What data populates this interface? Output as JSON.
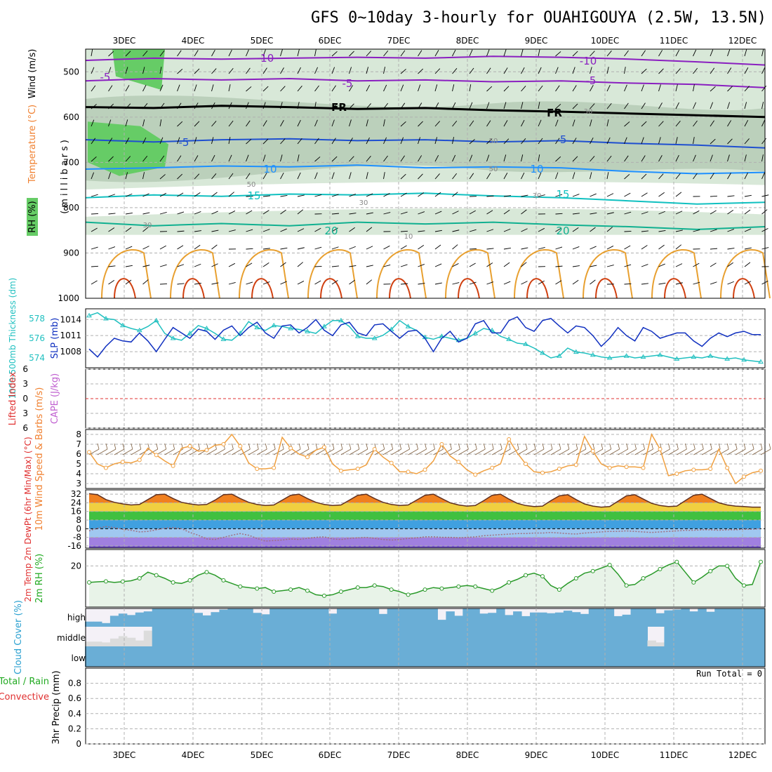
{
  "header": {
    "title": "GFS 0~10day 3-hourly for OUAHIGOUYA (2.5W, 13.5N)"
  },
  "colors": {
    "frame": "#000000",
    "grid": "#b0b0b0",
    "rh_fill": "#d8e8d8",
    "rh_fill2": "#a8c0a8",
    "rh_green": "#66cc66",
    "temp_purple": "#8a1fc0",
    "temp_blue": "#1f4fd0",
    "temp_lightblue": "#1e90ff",
    "temp_cyan": "#10c0c0",
    "temp_teal": "#10b090",
    "temp_orange": "#e8a030",
    "temp_red": "#d04010",
    "thickness": "#20c0c0",
    "slp": "#1030c0",
    "wind_speed": "#f0a040",
    "barb": "#806040",
    "temp2m_max": "#e05010",
    "dewpoint": "#a07080",
    "rh2m": "#2a9a2a",
    "rh2m_fill": "#e8f3e8",
    "cloud_blue": "#6aaed6",
    "cloud_bg": "#f4f1f7",
    "cloud_grey": "#dcdcdc",
    "label_red": "#e03030",
    "label_orange": "#f08030",
    "label_green": "#22aa22",
    "label_cyan": "#2aa0d0",
    "label_purple": "#c060d0"
  },
  "chart_data": [
    {
      "type": "contour",
      "panel": "upper_air",
      "ylabel": "(millibars)",
      "side_labels": [
        "RH (%)",
        "Temperature (°C)",
        "Wind (m/s)"
      ],
      "yticks": [
        "500",
        "600",
        "700",
        "800",
        "900",
        "1000"
      ],
      "ylim": [
        1000,
        450
      ],
      "x_dates": [
        "3DEC",
        "4DEC",
        "5DEC",
        "6DEC",
        "7DEC",
        "8DEC",
        "9DEC",
        "10DEC",
        "11DEC",
        "12DEC"
      ],
      "contour_labels": [
        "-10",
        "-10",
        "-5",
        "-5",
        "-5",
        "FR",
        "FR",
        "-5",
        "-5",
        "10",
        "10",
        "15",
        "15",
        "20",
        "20",
        "50",
        "50",
        "50",
        "30",
        "30",
        "30",
        "30",
        "10"
      ],
      "isotherms": [
        {
          "name": "-10",
          "level": [
            475,
            470,
            472,
            470,
            468,
            470,
            466,
            468,
            472,
            478,
            485
          ]
        },
        {
          "name": "-5",
          "level": [
            520,
            515,
            518,
            515,
            520,
            518,
            522,
            520,
            525,
            528,
            535
          ]
        },
        {
          "name": "FR",
          "level": [
            578,
            580,
            575,
            578,
            582,
            580,
            585,
            588,
            592,
            596,
            600
          ]
        },
        {
          "name": "5",
          "level": [
            650,
            655,
            650,
            648,
            652,
            650,
            655,
            652,
            658,
            662,
            668
          ]
        },
        {
          "name": "10",
          "level": [
            715,
            712,
            708,
            710,
            706,
            712,
            710,
            712,
            720,
            725,
            722
          ]
        },
        {
          "name": "15",
          "level": [
            778,
            772,
            775,
            770,
            772,
            768,
            774,
            778,
            785,
            792,
            788
          ]
        },
        {
          "name": "20",
          "level": [
            832,
            840,
            835,
            840,
            832,
            836,
            832,
            838,
            842,
            848,
            842
          ]
        }
      ]
    },
    {
      "type": "line",
      "panel": "thickness_slp",
      "y1label": "1000-500mb Thickness (dm)",
      "y2label": "SLP (mb)",
      "y1ticks": [
        "578",
        "576",
        "574"
      ],
      "y2ticks": [
        "1014",
        "1011",
        "1008"
      ],
      "series": [
        {
          "name": "1000-500mb Thickness (dm)",
          "ylim": [
            573,
            579
          ],
          "values": [
            578.3,
            578.6,
            578.0,
            577.9,
            577.3,
            577.0,
            576.8,
            577.2,
            577.8,
            576.5,
            576.0,
            575.8,
            576.5,
            577.3,
            577.0,
            576.5,
            575.9,
            575.8,
            576.5,
            577.7,
            577.1,
            576.8,
            577.3,
            577.2,
            577.0,
            576.9,
            576.7,
            576.5,
            577.2,
            577.8,
            577.8,
            577.2,
            576.2,
            576.0,
            576.0,
            576.3,
            576.9,
            577.8,
            577.2,
            576.8,
            576.1,
            575.9,
            576.2,
            576.0,
            575.8,
            576.0,
            576.5,
            577.0,
            576.8,
            576.2,
            575.9,
            575.5,
            575.4,
            575.0,
            574.5,
            574.0,
            574.2,
            575.0,
            574.6,
            574.5,
            574.3,
            574.1,
            574.0,
            574.1,
            574.2,
            574.0,
            574.1,
            574.2,
            574.3,
            574.1,
            573.9,
            574.0,
            574.1,
            574.0,
            574.2,
            574.0,
            573.9,
            574.0,
            573.8,
            573.7,
            573.6
          ]
        },
        {
          "name": "SLP (mb)",
          "ylim": [
            1005,
            1016
          ],
          "values": [
            1008.5,
            1007.0,
            1009.0,
            1010.5,
            1010.0,
            1009.8,
            1011.5,
            1010.0,
            1008.0,
            1010.3,
            1012.5,
            1011.5,
            1010.5,
            1012.2,
            1011.8,
            1010.3,
            1012.0,
            1012.8,
            1011.0,
            1012.5,
            1013.5,
            1011.5,
            1010.5,
            1012.8,
            1013.0,
            1011.5,
            1012.5,
            1014.0,
            1012.0,
            1011.0,
            1013.0,
            1013.5,
            1011.5,
            1011.0,
            1013.0,
            1013.2,
            1011.8,
            1010.5,
            1011.8,
            1012.0,
            1010.5,
            1008.0,
            1010.5,
            1011.8,
            1009.8,
            1010.5,
            1013.2,
            1013.8,
            1011.5,
            1011.5,
            1013.8,
            1014.5,
            1012.5,
            1011.8,
            1013.8,
            1014.2,
            1012.8,
            1011.5,
            1012.8,
            1012.5,
            1011.0,
            1009.0,
            1010.5,
            1012.5,
            1011.0,
            1010.0,
            1012.5,
            1011.8,
            1010.5,
            1011.0,
            1011.5,
            1011.5,
            1010.0,
            1009.0,
            1010.5,
            1011.5,
            1010.8,
            1011.5,
            1011.8,
            1011.2,
            1011.2
          ]
        }
      ]
    },
    {
      "type": "line",
      "panel": "lifted_index_cape",
      "y1label": "Lifted Index",
      "y2label": "CAPE (J/kg)",
      "yticks": [
        "6",
        "3",
        "0",
        "3",
        "6"
      ],
      "ylim": [
        -6,
        6
      ],
      "series": []
    },
    {
      "type": "line",
      "panel": "wind10m",
      "ylabel": "10m Wind Speed & Barbs (m/s)",
      "yticks": [
        "8",
        "7",
        "6",
        "5",
        "4",
        "3"
      ],
      "ylim": [
        2.5,
        8.5
      ],
      "series": [
        {
          "name": "10m Wind Speed",
          "values": [
            6.2,
            5.0,
            4.6,
            5.0,
            5.2,
            5.1,
            5.4,
            6.6,
            5.9,
            5.3,
            4.8,
            6.6,
            6.8,
            6.3,
            6.4,
            6.9,
            7.0,
            8.0,
            6.8,
            5.1,
            4.5,
            4.5,
            4.6,
            7.7,
            6.6,
            6.0,
            5.7,
            6.4,
            6.7,
            5.0,
            4.3,
            4.4,
            4.5,
            4.9,
            6.5,
            5.7,
            5.1,
            4.2,
            4.2,
            4.0,
            4.4,
            5.3,
            7.0,
            5.8,
            5.2,
            4.4,
            3.9,
            4.3,
            4.6,
            5.0,
            7.5,
            6.1,
            5.0,
            4.2,
            4.1,
            4.2,
            4.5,
            4.8,
            4.9,
            7.8,
            6.3,
            5.0,
            4.6,
            4.8,
            4.7,
            4.7,
            4.6,
            8.0,
            6.5,
            3.8,
            4.0,
            4.3,
            4.4,
            4.4,
            4.5,
            6.5,
            4.6,
            3.0,
            3.7,
            4.1,
            4.3
          ]
        }
      ]
    },
    {
      "type": "area",
      "panel": "temp2m",
      "ylabel": "2m Temp 2m DewPt (6hr Min/Max) (°C)",
      "yticks": [
        "32",
        "24",
        "16",
        "8",
        "0",
        "-8",
        "-16"
      ],
      "ylim": [
        -18,
        36
      ],
      "series": [
        {
          "name": "2m Temp",
          "values": [
            32.5,
            31.5,
            27.0,
            24.5,
            23.0,
            22.0,
            22.5,
            27.0,
            31.5,
            32.0,
            28.0,
            24.5,
            23.0,
            22.0,
            22.5,
            26.5,
            31.5,
            32.0,
            28.0,
            24.5,
            22.5,
            21.5,
            22.0,
            26.5,
            31.0,
            32.0,
            28.0,
            24.5,
            22.5,
            21.5,
            22.0,
            26.5,
            31.0,
            32.0,
            28.0,
            24.5,
            22.5,
            21.5,
            22.0,
            26.5,
            31.0,
            32.0,
            28.0,
            24.0,
            22.0,
            21.0,
            21.5,
            26.0,
            31.0,
            32.0,
            27.5,
            23.5,
            21.5,
            20.5,
            21.0,
            26.0,
            30.5,
            31.5,
            27.0,
            23.0,
            21.0,
            20.0,
            20.5,
            25.5,
            30.5,
            31.5,
            27.5,
            23.5,
            21.5,
            20.5,
            21.0,
            26.0,
            31.0,
            32.0,
            28.0,
            24.0,
            22.0,
            21.0,
            20.5,
            20.0,
            20.0
          ]
        },
        {
          "name": "2m DewPt",
          "values": [
            -2.0,
            0.5,
            2.0,
            1.0,
            -0.5,
            -1.5,
            -3.0,
            -2.5,
            -1.0,
            0.5,
            1.0,
            0.0,
            -3.5,
            -6.0,
            -9.5,
            -10.0,
            -8.0,
            -6.0,
            -4.5,
            -6.0,
            -9.0,
            -11.5,
            -11.0,
            -10.5,
            -9.5,
            -10.0,
            -9.0,
            -8.0,
            -7.5,
            -9.5,
            -10.0,
            -9.0,
            -8.5,
            -8.0,
            -9.0,
            -10.0,
            -10.5,
            -10.0,
            -9.0,
            -8.5,
            -7.5,
            -7.5,
            -8.0,
            -8.0,
            -8.5,
            -8.0,
            -7.5,
            -6.5,
            -6.0,
            -5.5,
            -5.0,
            -4.5,
            -4.5,
            -4.0,
            -4.0,
            -3.5,
            -4.0,
            -4.5,
            -5.0,
            -4.0,
            -3.5,
            -3.0,
            -2.5,
            -2.5,
            -2.0,
            -2.5,
            -3.0,
            -3.5,
            -3.0,
            -2.5,
            -2.0,
            -1.5,
            -1.5,
            -1.0,
            -1.0,
            -1.5,
            -1.0,
            -1.0,
            -0.5,
            -0.5,
            0.0
          ]
        }
      ]
    },
    {
      "type": "area",
      "panel": "rh2m",
      "ylabel": "2m RH (%)",
      "yticks": [
        "20"
      ],
      "ylim": [
        0,
        28
      ],
      "series": [
        {
          "name": "2m RH",
          "values": [
            12.0,
            12.3,
            12.5,
            12.0,
            12.4,
            12.8,
            14.0,
            17.0,
            15.5,
            14.0,
            12.0,
            11.5,
            13.0,
            15.5,
            17.0,
            15.5,
            13.0,
            11.5,
            10.0,
            9.5,
            9.0,
            9.5,
            7.5,
            8.0,
            8.5,
            9.5,
            8.0,
            6.0,
            5.5,
            6.0,
            7.5,
            8.5,
            9.5,
            9.5,
            10.5,
            10.0,
            8.5,
            7.5,
            6.0,
            7.0,
            8.5,
            9.5,
            9.0,
            9.5,
            10.0,
            10.5,
            10.0,
            9.0,
            8.0,
            9.5,
            12.0,
            13.5,
            15.5,
            16.5,
            15.0,
            10.5,
            8.5,
            11.5,
            14.0,
            16.5,
            17.5,
            19.0,
            20.5,
            16.0,
            10.5,
            11.0,
            14.0,
            16.0,
            18.5,
            20.5,
            22.0,
            17.0,
            12.0,
            14.5,
            17.5,
            20.0,
            20.0,
            14.0,
            10.5,
            11.0,
            22.0
          ]
        }
      ]
    },
    {
      "type": "bar",
      "panel": "cloud_cover",
      "ylabel": "Cloud Cover (%)",
      "yticks": [
        "high",
        "middle",
        "low"
      ],
      "ylim": [
        0,
        100
      ],
      "series": [
        {
          "name": "high",
          "values": [
            28,
            28,
            20,
            60,
            72,
            64,
            78,
            84,
            100,
            100,
            100,
            100,
            100,
            76,
            62,
            80,
            94,
            100,
            100,
            100,
            76,
            68,
            100,
            100,
            100,
            100,
            100,
            100,
            100,
            72,
            100,
            100,
            100,
            100,
            100,
            70,
            100,
            100,
            100,
            100,
            100,
            100,
            38,
            84,
            60,
            100,
            100,
            72,
            76,
            100,
            64,
            84,
            58,
            78,
            78,
            74,
            78,
            88,
            80,
            70,
            100,
            100,
            100,
            58,
            66,
            100,
            100,
            100,
            74,
            90,
            94,
            100,
            84,
            100,
            82,
            100,
            100,
            100,
            100,
            100,
            100
          ]
        },
        {
          "name": "middle",
          "values": [
            24,
            24,
            20,
            40,
            52,
            44,
            30,
            80,
            100,
            100,
            100,
            100,
            100,
            100,
            100,
            100,
            100,
            100,
            100,
            100,
            100,
            100,
            100,
            100,
            100,
            100,
            100,
            100,
            100,
            100,
            100,
            100,
            100,
            100,
            100,
            100,
            100,
            100,
            100,
            100,
            100,
            100,
            100,
            100,
            100,
            100,
            100,
            100,
            100,
            100,
            100,
            100,
            100,
            100,
            100,
            100,
            100,
            100,
            100,
            100,
            100,
            100,
            100,
            100,
            100,
            100,
            100,
            30,
            20,
            100,
            100,
            100,
            100,
            100,
            100,
            100,
            100,
            100,
            100,
            100,
            100
          ]
        },
        {
          "name": "low",
          "values": [
            100,
            100,
            100,
            100,
            100,
            100,
            100,
            100,
            100,
            100,
            100,
            100,
            100,
            100,
            100,
            100,
            100,
            100,
            100,
            100,
            100,
            100,
            100,
            100,
            100,
            100,
            100,
            100,
            100,
            100,
            100,
            100,
            100,
            100,
            100,
            100,
            100,
            100,
            100,
            100,
            100,
            100,
            100,
            100,
            100,
            100,
            100,
            100,
            100,
            100,
            100,
            100,
            100,
            100,
            100,
            100,
            100,
            100,
            100,
            100,
            100,
            100,
            100,
            100,
            100,
            100,
            100,
            100,
            100,
            100,
            100,
            100,
            100,
            100,
            100,
            100,
            100,
            100,
            100,
            100,
            100
          ]
        }
      ]
    },
    {
      "type": "bar",
      "panel": "precip",
      "y1label": "Total / Rain",
      "y2label": "Convective",
      "ylabel": "3hr Precip (mm)",
      "yticks": [
        "0.8",
        "0.6",
        "0.4",
        "0.2",
        "0"
      ],
      "ylim": [
        0,
        1
      ],
      "run_total": "Run Total = 0",
      "series": []
    }
  ]
}
